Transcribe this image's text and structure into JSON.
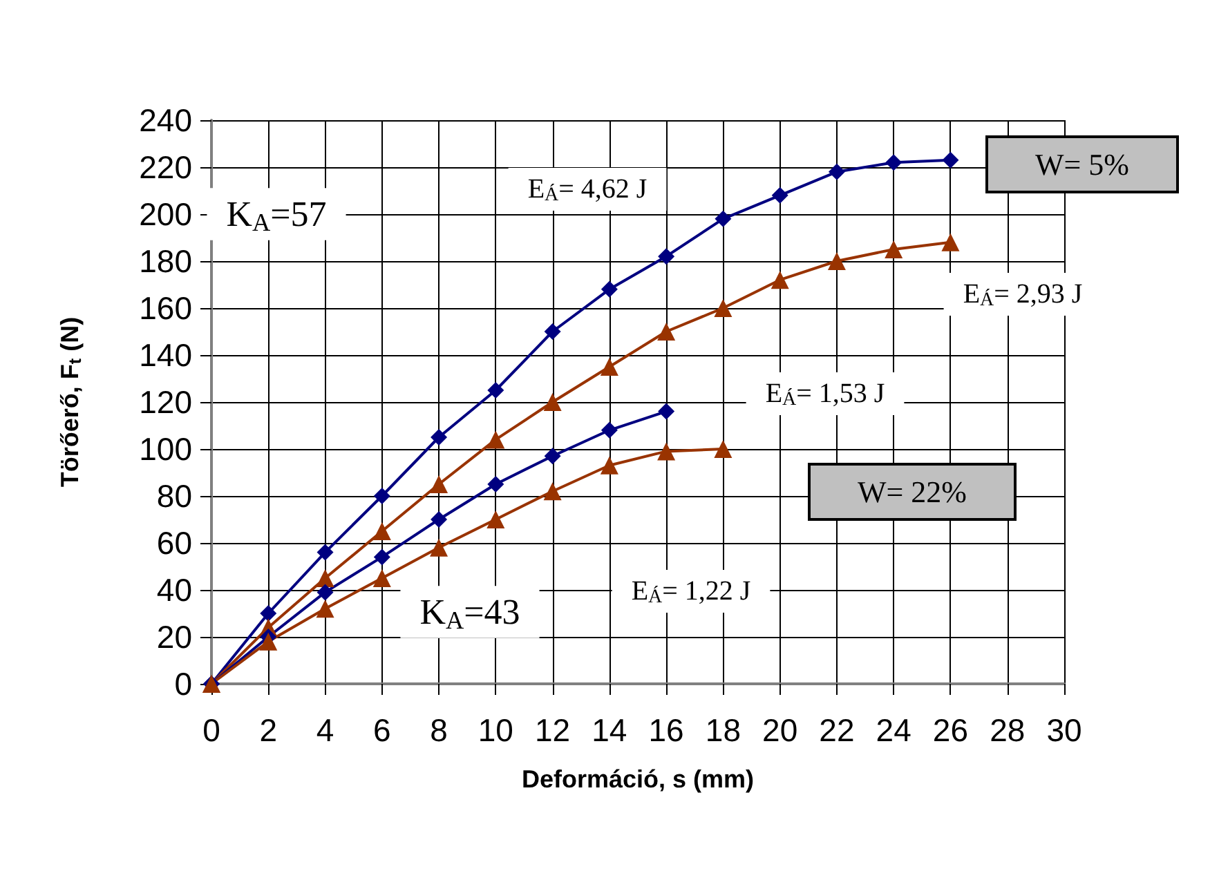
{
  "chart_data": {
    "type": "line",
    "xlabel": "Deformáció, s (mm)",
    "ylabel": "Törőerő, F$_{t}$ (N)",
    "xlim": [
      0,
      30
    ],
    "xticks": [
      0,
      2,
      4,
      6,
      8,
      10,
      12,
      14,
      16,
      18,
      20,
      22,
      24,
      26,
      28,
      30
    ],
    "ylim": [
      0,
      240
    ],
    "yticks": [
      0,
      20,
      40,
      60,
      80,
      100,
      120,
      140,
      160,
      180,
      200,
      220,
      240
    ],
    "grid": true,
    "series": [
      {
        "color": "#000080",
        "marker": "diamond",
        "x": [
          0,
          2,
          4,
          6,
          8,
          10,
          12,
          14,
          16,
          18,
          20,
          22,
          24,
          26
        ],
        "values": [
          0,
          30,
          56,
          80,
          105,
          125,
          150,
          168,
          182,
          198,
          208,
          218,
          222,
          223
        ]
      },
      {
        "color": "#993300",
        "marker": "triangle",
        "x": [
          0,
          2,
          4,
          6,
          8,
          10,
          12,
          14,
          16,
          18,
          20,
          22,
          24,
          26
        ],
        "values": [
          0,
          24,
          45,
          65,
          85,
          104,
          120,
          135,
          150,
          160,
          172,
          180,
          185,
          188
        ]
      },
      {
        "color": "#000080",
        "marker": "diamond",
        "x": [
          0,
          2,
          4,
          6,
          8,
          10,
          12,
          14,
          16
        ],
        "values": [
          0,
          20,
          39,
          54,
          70,
          85,
          97,
          108,
          116
        ]
      },
      {
        "color": "#993300",
        "marker": "triangle",
        "x": [
          0,
          2,
          4,
          6,
          8,
          10,
          12,
          14,
          16,
          18
        ],
        "values": [
          0,
          18,
          32,
          45,
          58,
          70,
          82,
          93,
          99,
          100
        ]
      }
    ],
    "annotations": [
      "K$_{A}$=57",
      "E$_{Á}$= 4,62 J",
      "W= 5%",
      "E$_{Á}$= 2,93 J",
      "E$_{Á}$= 1,53 J",
      "W= 22%",
      "K$_{A}$=43",
      "E$_{Á}$= 1,22 J"
    ]
  }
}
